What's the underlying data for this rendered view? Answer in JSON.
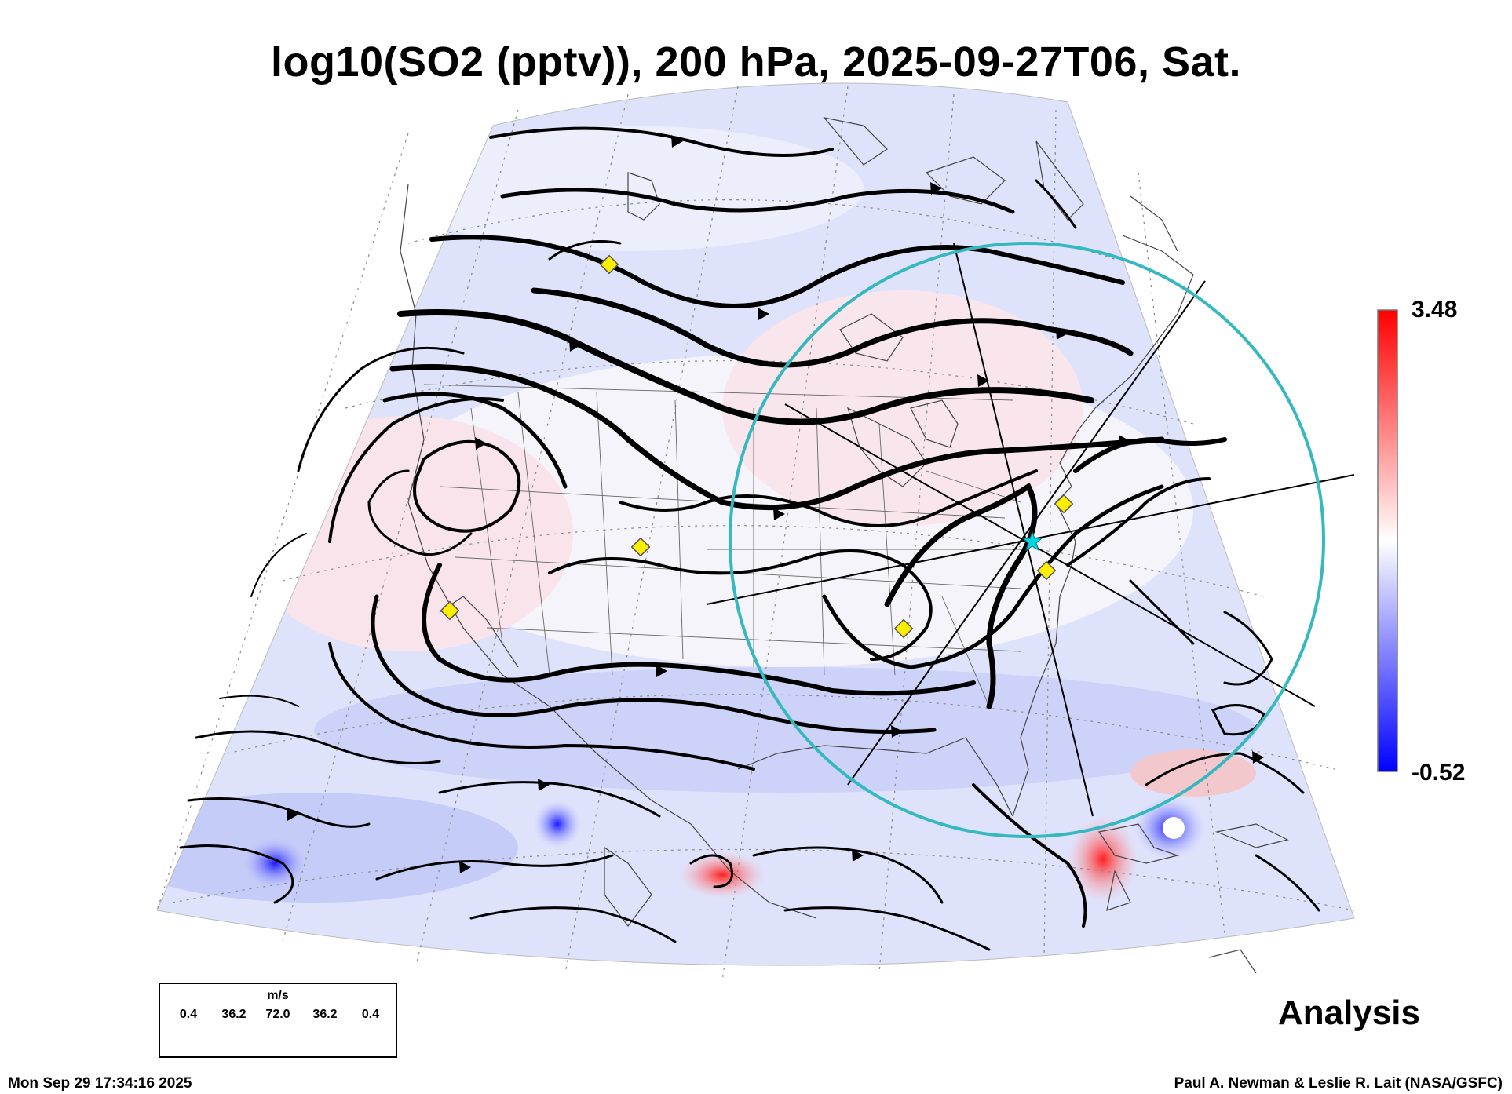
{
  "title": "log10(SO2 (pptv)), 200 hPa, 2025-09-27T06, Sat.",
  "colorbar": {
    "max_label": "3.48",
    "min_label": "-0.52",
    "colors": [
      "#0000ff",
      "#ffffff",
      "#ff0000"
    ]
  },
  "product_label": "Analysis",
  "timestamp": "Mon Sep 29 17:34:16 2025",
  "credit": "Paul A. Newman & Leslie R. Lait (NASA/GSFC)",
  "wind_legend": {
    "unit": "m/s",
    "values": [
      "0.4",
      "36.2",
      "72.0",
      "36.2",
      "0.4"
    ]
  },
  "map": {
    "field": "log10(SO2 (pptv))",
    "level": "200 hPa",
    "valid_time": "2025-09-27T06",
    "source": "Sat.",
    "overlays": [
      "streamlines",
      "coastlines",
      "state-borders",
      "graticule",
      "range-circle",
      "yellow-diamond-markers",
      "cyan-star-marker"
    ],
    "marker_count": 7
  }
}
